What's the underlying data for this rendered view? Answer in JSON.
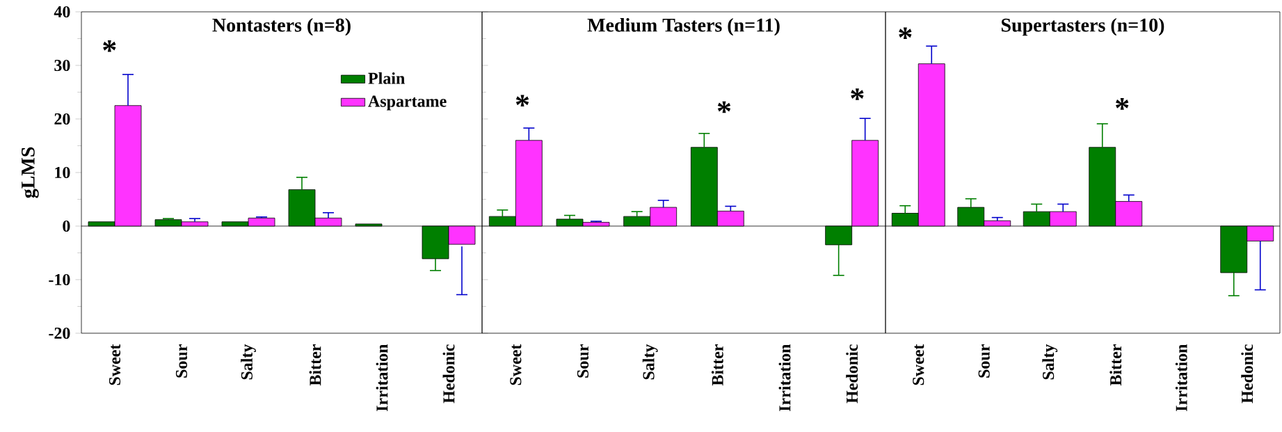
{
  "chart_data": [
    {
      "type": "bar",
      "title": "Nontasters (n=8)",
      "ylabel": "gLMS",
      "categories": [
        "Sweet",
        "Sour",
        "Salty",
        "Bitter",
        "Irritation",
        "Hedonic"
      ],
      "series": [
        {
          "name": "Plain",
          "color": "#007f00",
          "values": [
            0.8,
            1.2,
            0.8,
            6.8,
            0.4,
            -6.1
          ],
          "errors": [
            null,
            [
              1.2,
              1.4
            ],
            null,
            [
              6.8,
              9.1
            ],
            null,
            [
              -8.3,
              -6.1
            ]
          ]
        },
        {
          "name": "Aspartame",
          "color": "#ff33ff",
          "values": [
            22.5,
            0.8,
            1.5,
            1.5,
            null,
            -3.4
          ],
          "errors": [
            [
              22.5,
              28.3
            ],
            [
              0.8,
              1.4
            ],
            [
              1.5,
              1.7
            ],
            [
              1.5,
              2.5
            ],
            null,
            [
              -12.8,
              -3.8
            ]
          ]
        }
      ],
      "ylim": [
        -20,
        40
      ],
      "yticks": [
        -20,
        -10,
        0,
        10,
        20,
        30,
        40
      ],
      "legend": "top right",
      "annotations": [
        "*"
      ]
    },
    {
      "type": "bar",
      "title": "Medium Tasters (n=11)",
      "categories": [
        "Sweet",
        "Sour",
        "Salty",
        "Bitter",
        "Irritation",
        "Hedonic"
      ],
      "series": [
        {
          "color": "#007f00",
          "values": [
            1.8,
            1.3,
            1.8,
            14.7,
            null,
            -3.5
          ],
          "errors": [
            [
              1.8,
              3.0
            ],
            [
              1.3,
              2.0
            ],
            [
              1.8,
              2.7
            ],
            [
              14.7,
              17.3
            ],
            null,
            [
              -9.2,
              -3.5
            ]
          ]
        },
        {
          "color": "#ff33ff",
          "values": [
            16.0,
            0.7,
            3.5,
            2.8,
            null,
            16.0
          ],
          "errors": [
            [
              16.0,
              18.3
            ],
            [
              0.7,
              0.9
            ],
            [
              3.5,
              4.8
            ],
            [
              2.8,
              3.7
            ],
            null,
            [
              16.0,
              20.1
            ]
          ]
        }
      ],
      "ylim": [
        -20,
        40
      ],
      "tick_labels": "x",
      "annotations": [
        "*",
        "*",
        "*"
      ]
    },
    {
      "type": "bar",
      "title": "Supertasters (n=10)",
      "categories": [
        "Sweet",
        "Sour",
        "Salty",
        "Bitter",
        "Irritation",
        "Hedonic"
      ],
      "series": [
        {
          "color": "#007f00",
          "values": [
            2.4,
            3.5,
            2.7,
            14.7,
            null,
            -8.7
          ],
          "errors": [
            [
              2.4,
              3.8
            ],
            [
              3.5,
              5.1
            ],
            [
              2.7,
              4.1
            ],
            [
              14.7,
              19.1
            ],
            null,
            [
              -13.0,
              -8.7
            ]
          ]
        },
        {
          "color": "#ff33ff",
          "values": [
            30.3,
            1.0,
            2.7,
            4.6,
            null,
            -2.8
          ],
          "errors": [
            [
              30.3,
              33.6
            ],
            [
              1.0,
              1.6
            ],
            [
              2.7,
              4.1
            ],
            [
              4.6,
              5.8
            ],
            null,
            [
              -11.9,
              -2.8
            ]
          ]
        }
      ],
      "ylim": [
        -20,
        40
      ],
      "tick_labels": "x",
      "annotations": [
        "*",
        "*"
      ]
    }
  ]
}
